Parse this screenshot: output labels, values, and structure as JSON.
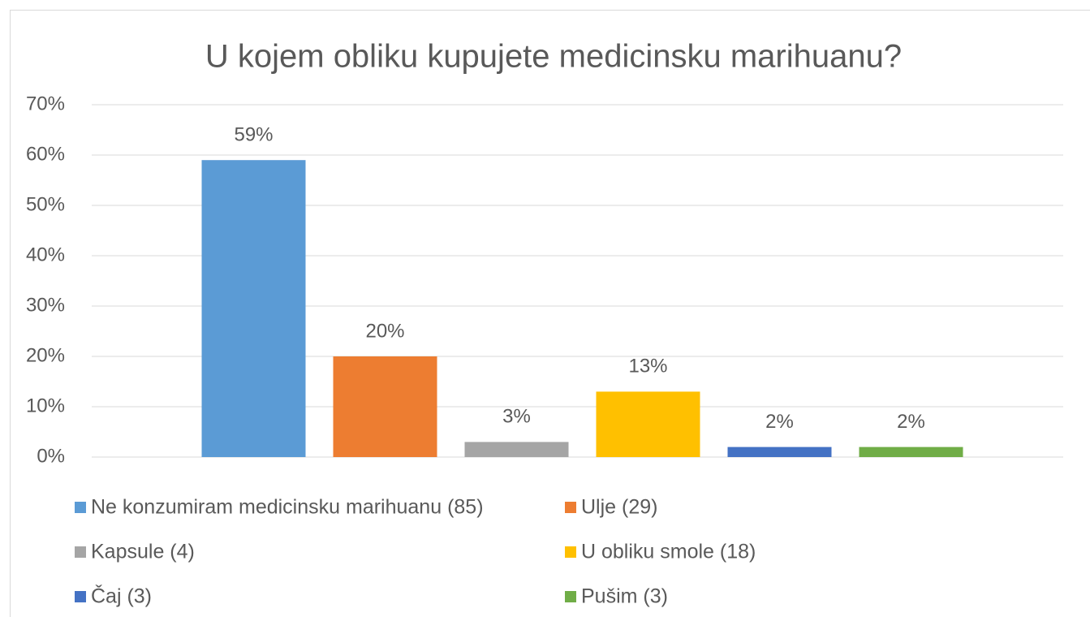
{
  "chart_data": {
    "type": "bar",
    "title": "U kojem obliku kupujete medicinsku marihuanu?",
    "series": [
      {
        "name": "Ne konzumiram medicinsku marihuanu (85)",
        "color": "#5b9bd5",
        "values": [
          59
        ],
        "value_labels": [
          "59%"
        ]
      },
      {
        "name": "Ulje (29)",
        "color": "#ed7d31",
        "values": [
          20
        ],
        "value_labels": [
          "20%"
        ]
      },
      {
        "name": "Kapsule (4)",
        "color": "#a5a5a5",
        "values": [
          3
        ],
        "value_labels": [
          "3%"
        ]
      },
      {
        "name": "U obliku smole (18)",
        "color": "#ffc000",
        "values": [
          13
        ],
        "value_labels": [
          "13%"
        ]
      },
      {
        "name": "Čaj (3)",
        "color": "#4472c4",
        "values": [
          2
        ],
        "value_labels": [
          "2%"
        ]
      },
      {
        "name": "Pušim (3)",
        "color": "#70ad47",
        "values": [
          2
        ],
        "value_labels": [
          "2%"
        ]
      }
    ],
    "ylim": [
      0,
      70
    ],
    "yticks": [
      {
        "value": 0,
        "label": "0%"
      },
      {
        "value": 10,
        "label": "10%"
      },
      {
        "value": 20,
        "label": "20%"
      },
      {
        "value": 30,
        "label": "30%"
      },
      {
        "value": 40,
        "label": "40%"
      },
      {
        "value": 50,
        "label": "50%"
      },
      {
        "value": 60,
        "label": "60%"
      },
      {
        "value": 70,
        "label": "70%"
      }
    ],
    "grid": true,
    "legend": "bottom"
  }
}
